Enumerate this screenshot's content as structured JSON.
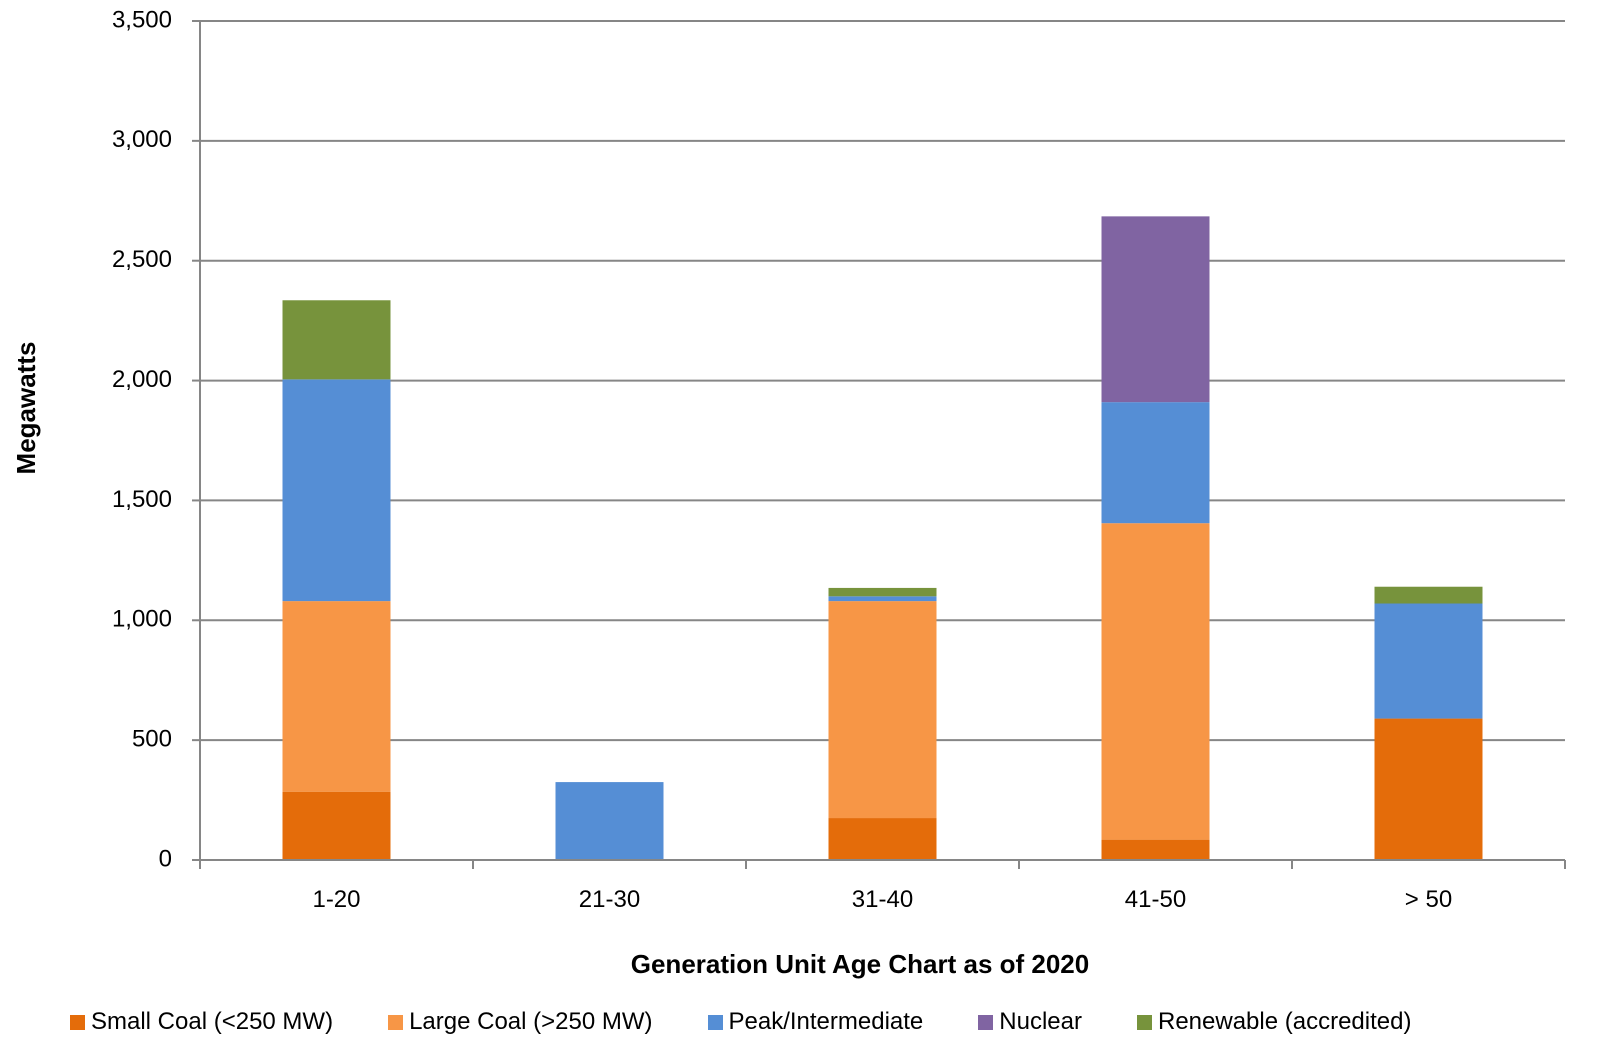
{
  "chart_data": {
    "type": "bar",
    "stacked": true,
    "categories": [
      "1-20",
      "21-30",
      "31-40",
      "41-50",
      "> 50"
    ],
    "series": [
      {
        "name": "Small Coal (<250 MW)",
        "color": "#E46C0A",
        "values": [
          285,
          0,
          175,
          85,
          590
        ]
      },
      {
        "name": "Large Coal (>250 MW)",
        "color": "#F79646",
        "values": [
          795,
          0,
          905,
          1320,
          0
        ]
      },
      {
        "name": "Peak/Intermediate",
        "color": "#558ED5",
        "values": [
          925,
          325,
          20,
          505,
          480
        ]
      },
      {
        "name": "Nuclear",
        "color": "#8064A2",
        "values": [
          0,
          0,
          0,
          775,
          0
        ]
      },
      {
        "name": "Renewable (accredited)",
        "color": "#77933C",
        "values": [
          330,
          0,
          35,
          0,
          70
        ]
      }
    ],
    "yticks": [
      "0",
      "500",
      "1,000",
      "1,500",
      "2,000",
      "2,500",
      "3,000",
      "3,500"
    ],
    "ylim": [
      0,
      3500
    ],
    "ylabel": "Megawatts",
    "xlabel": "Generation Unit Age Chart as of 2020",
    "grid": true,
    "legend_position": "bottom"
  }
}
